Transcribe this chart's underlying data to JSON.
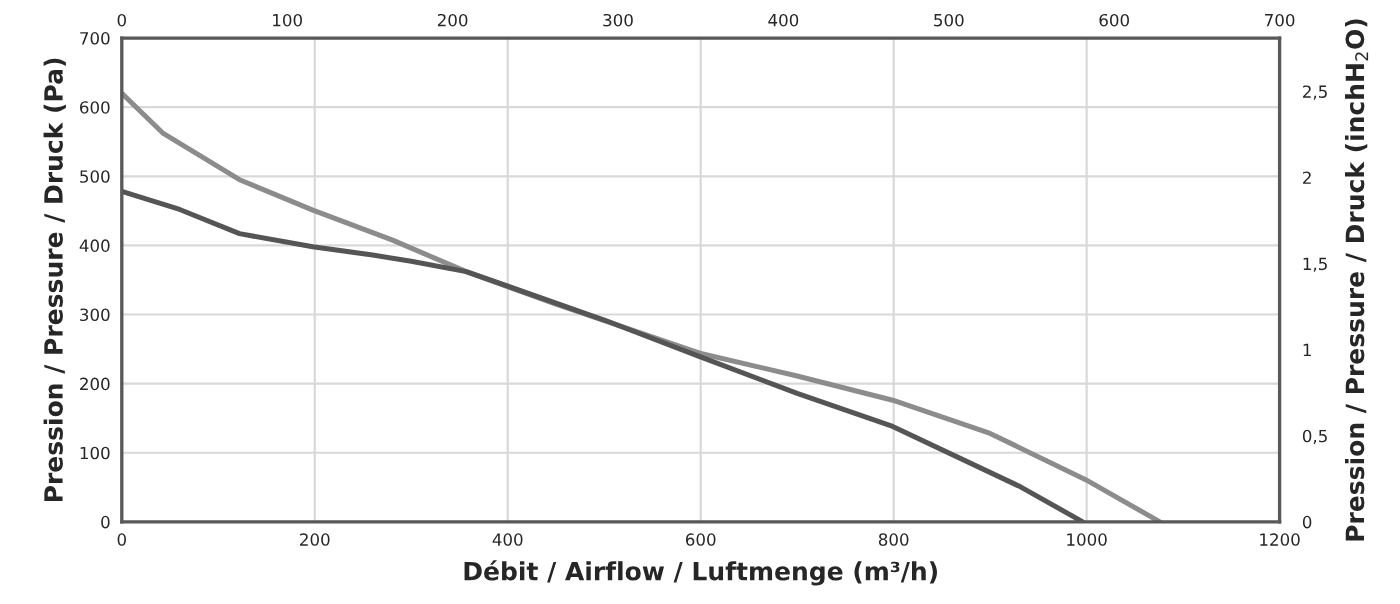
{
  "chart_data": {
    "type": "line",
    "xlabel": "Débit / Airflow / Luftmenge (m³/h)",
    "ylabel": "Pression / Pressure / Druck (Pa)",
    "y2label": "Pression / Pressure / Druck (inchH$_{2}$O)",
    "series": [
      {
        "color": "#8c8c8c",
        "x": [
          0,
          43,
          122,
          198,
          280,
          357,
          450,
          599,
          700,
          799,
          900,
          999,
          1076
        ],
        "values": [
          620,
          562,
          495,
          451,
          408,
          362,
          315,
          244,
          211,
          176,
          128,
          61,
          0
        ]
      },
      {
        "color": "#555555",
        "x": [
          0,
          60,
          122,
          198,
          260,
          300,
          357,
          398,
          500,
          599,
          700,
          799,
          931,
          996
        ],
        "values": [
          478,
          452,
          417,
          398,
          386,
          377,
          362,
          342,
          292,
          239,
          186,
          138,
          51,
          0
        ]
      }
    ],
    "xlim": [
      0,
      1200
    ],
    "xticks": [
      0,
      200,
      400,
      600,
      800,
      1000,
      1200
    ],
    "ylim": [
      0,
      700
    ],
    "yticks": [
      0,
      100,
      200,
      300,
      400,
      500,
      600,
      700
    ],
    "y2lim": [
      0,
      2.81
    ],
    "y2ticks": [
      0,
      {
        "value": 0.5,
        "label": "0,5"
      },
      1,
      {
        "value": 1.5,
        "label": "1,5"
      },
      2,
      {
        "value": 2.5,
        "label": "2,5"
      }
    ],
    "x2lim": [
      0,
      700
    ],
    "x2ticks": [
      0,
      100,
      200,
      300,
      400,
      500,
      600,
      700
    ],
    "grid": true,
    "line_style": "solid",
    "marker": "none"
  }
}
